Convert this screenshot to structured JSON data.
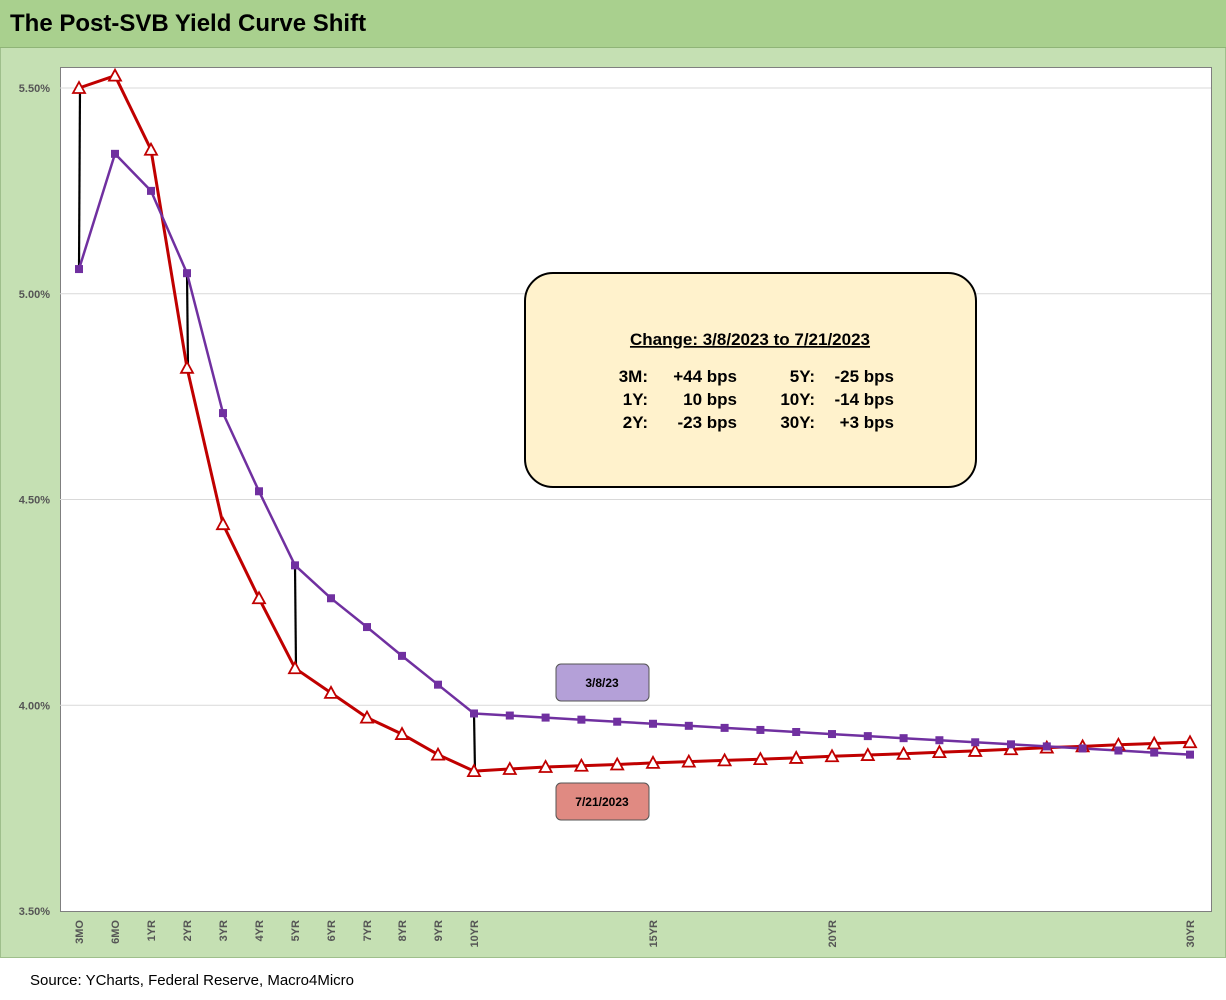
{
  "title": "The Post-SVB Yield Curve Shift",
  "source": "Source: YCharts, Federal Reserve, Macro4Micro",
  "colors": {
    "background_green": "#c5e0b3",
    "title_green": "#a9d08e",
    "series_mar": "#7030a0",
    "series_jul": "#c00000",
    "box_fill": "#fff2cc",
    "label_mar_fill": "#b4a0d8",
    "label_jul_fill": "#e08a82",
    "connector": "#000000"
  },
  "annotation": {
    "title": "Change: 3/8/2023 to 7/21/2023",
    "left_rows": [
      {
        "tenor": "3M:",
        "value": "+44 bps"
      },
      {
        "tenor": "1Y:",
        "value": "10 bps"
      },
      {
        "tenor": "2Y:",
        "value": "-23 bps"
      }
    ],
    "right_rows": [
      {
        "tenor": "5Y:",
        "value": "-25 bps"
      },
      {
        "tenor": "10Y:",
        "value": "-14 bps"
      },
      {
        "tenor": "30Y:",
        "value": "+3 bps"
      }
    ]
  },
  "chart_data": {
    "type": "line",
    "title": "The Post-SVB Yield Curve Shift",
    "xlabel": "",
    "ylabel": "",
    "ylim": [
      3.5,
      5.55
    ],
    "yticks": [
      3.5,
      4.0,
      4.5,
      5.0,
      5.5
    ],
    "ytick_labels": [
      "3.50%",
      "4.00%",
      "4.50%",
      "5.00%",
      "5.50%"
    ],
    "x_tick_labels": [
      "3MO",
      "6MO",
      "1YR",
      "2YR",
      "3YR",
      "4YR",
      "5YR",
      "6YR",
      "7YR",
      "8YR",
      "9YR",
      "10YR",
      "15YR",
      "20YR",
      "30YR"
    ],
    "x_tick_positions": [
      0.25,
      0.5,
      1,
      2,
      3,
      4,
      5,
      6,
      7,
      8,
      9,
      10,
      15,
      20,
      30
    ],
    "grid": "horizontal",
    "x": [
      0.25,
      0.5,
      1,
      2,
      3,
      4,
      5,
      6,
      7,
      8,
      9,
      10,
      11,
      12,
      13,
      14,
      15,
      16,
      17,
      18,
      19,
      20,
      21,
      22,
      23,
      24,
      25,
      26,
      27,
      28,
      29,
      30
    ],
    "series": [
      {
        "name": "3/8/23",
        "marker": "square",
        "values": [
          5.06,
          5.34,
          5.25,
          5.05,
          4.71,
          4.52,
          4.34,
          4.26,
          4.19,
          4.12,
          4.05,
          3.98,
          3.975,
          3.97,
          3.965,
          3.96,
          3.955,
          3.95,
          3.945,
          3.94,
          3.935,
          3.93,
          3.925,
          3.92,
          3.915,
          3.91,
          3.905,
          3.9,
          3.895,
          3.89,
          3.885,
          3.88
        ]
      },
      {
        "name": "7/21/2023",
        "marker": "triangle",
        "values": [
          5.5,
          5.53,
          5.35,
          4.82,
          4.44,
          4.26,
          4.09,
          4.03,
          3.97,
          3.93,
          3.88,
          3.84,
          3.845,
          3.85,
          3.853,
          3.856,
          3.86,
          3.863,
          3.866,
          3.869,
          3.872,
          3.876,
          3.879,
          3.882,
          3.886,
          3.889,
          3.893,
          3.897,
          3.9,
          3.904,
          3.907,
          3.91
        ]
      }
    ],
    "connectors_at_x": [
      0.25,
      2,
      5,
      10
    ]
  }
}
